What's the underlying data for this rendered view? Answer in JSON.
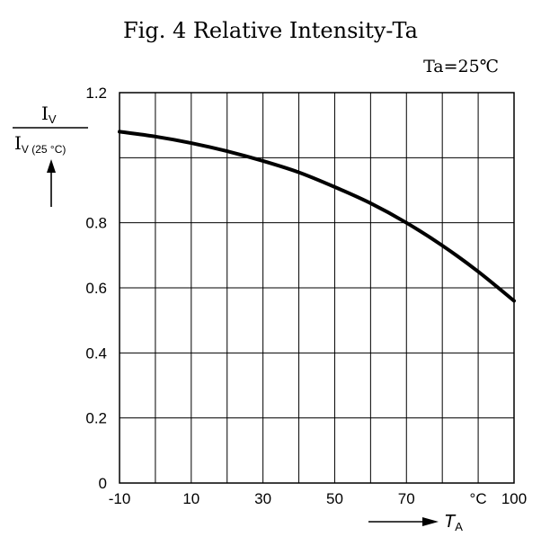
{
  "chart_data": {
    "type": "line",
    "title": "Fig. 4 Relative Intensity-Ta",
    "condition": "Ta=25℃",
    "ylabel": {
      "numerator": "I",
      "numerator_sub": "V",
      "denominator": "I",
      "denominator_sub": "V (25 °C)"
    },
    "xlabel": {
      "symbol": "T",
      "sub": "A"
    },
    "x_unit": "°C",
    "xlim": [
      -10,
      100
    ],
    "ylim": [
      0,
      1.2
    ],
    "x_gridlines": [
      -10,
      0,
      10,
      20,
      30,
      40,
      50,
      60,
      70,
      80,
      90,
      100
    ],
    "y_gridlines": [
      0,
      0.2,
      0.4,
      0.6,
      0.8,
      1.0,
      1.2
    ],
    "x_tick_labels": [
      {
        "value": -10,
        "label": "-10"
      },
      {
        "value": 10,
        "label": "10"
      },
      {
        "value": 30,
        "label": "30"
      },
      {
        "value": 50,
        "label": "50"
      },
      {
        "value": 70,
        "label": "70"
      },
      {
        "value": 90,
        "label": "°C"
      },
      {
        "value": 100,
        "label": "100"
      }
    ],
    "y_tick_labels": [
      {
        "value": 0,
        "label": "0"
      },
      {
        "value": 0.2,
        "label": "0.2"
      },
      {
        "value": 0.4,
        "label": "0.4"
      },
      {
        "value": 0.6,
        "label": "0.6"
      },
      {
        "value": 0.8,
        "label": "0.8"
      },
      {
        "value": 1.2,
        "label": "1.2"
      }
    ],
    "grid": true,
    "series": [
      {
        "color": "#000000",
        "x": [
          -10,
          0,
          10,
          20,
          30,
          40,
          50,
          60,
          70,
          80,
          90,
          100
        ],
        "y": [
          1.08,
          1.065,
          1.045,
          1.02,
          0.99,
          0.955,
          0.91,
          0.86,
          0.8,
          0.73,
          0.65,
          0.56
        ]
      }
    ]
  }
}
